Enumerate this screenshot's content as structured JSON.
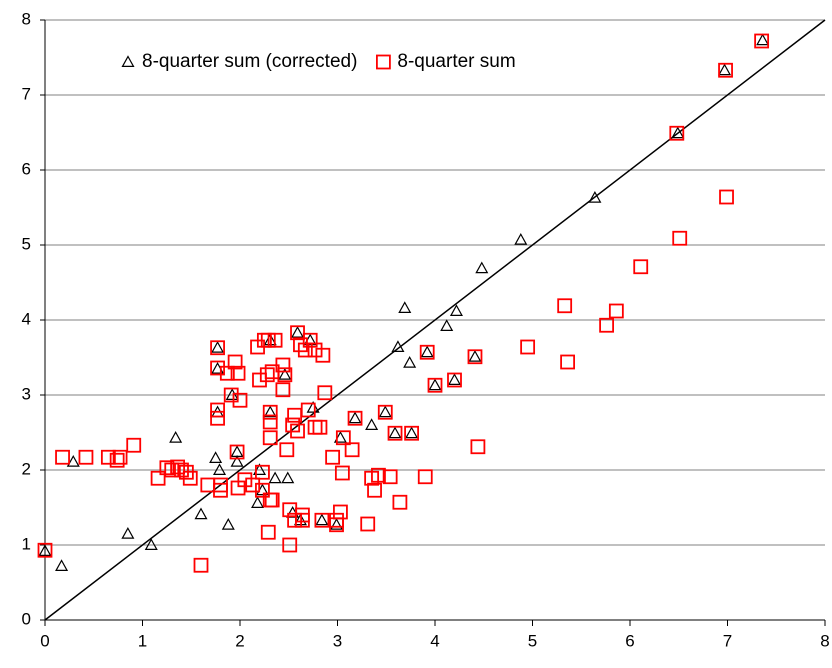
{
  "chart_data": {
    "type": "scatter",
    "xlim": [
      0,
      8
    ],
    "ylim": [
      0,
      8
    ],
    "xticks": [
      0,
      1,
      2,
      3,
      4,
      5,
      6,
      7,
      8
    ],
    "yticks": [
      0,
      1,
      2,
      3,
      4,
      5,
      6,
      7,
      8
    ],
    "grid": true,
    "legend": "top-left",
    "series": [
      {
        "name": "8-quarter sum (corrected)",
        "color": "#000000",
        "marker": "triangle",
        "x": [
          0,
          0.17,
          0.29,
          0.85,
          1.09,
          1.34,
          1.6,
          1.75,
          1.77,
          1.77,
          1.77,
          1.79,
          1.88,
          1.92,
          1.97,
          1.97,
          2.18,
          2.2,
          2.23,
          2.31,
          2.31,
          2.36,
          2.46,
          2.49,
          2.54,
          2.59,
          2.62,
          2.72,
          2.75,
          2.84,
          2.99,
          3.03,
          3.18,
          3.35,
          3.49,
          3.59,
          3.62,
          3.69,
          3.74,
          3.76,
          3.92,
          4.0,
          4.12,
          4.22,
          4.2,
          4.41,
          4.48,
          4.88,
          5.64,
          6.49,
          6.97,
          7.36
        ],
        "values": [
          0.92,
          0.72,
          2.11,
          1.15,
          1.0,
          2.43,
          1.41,
          2.16,
          3.63,
          3.35,
          2.77,
          2.0,
          1.27,
          3.0,
          2.24,
          2.11,
          1.56,
          2.0,
          1.73,
          2.77,
          3.73,
          1.89,
          3.27,
          1.89,
          1.43,
          3.83,
          1.33,
          3.73,
          2.83,
          1.33,
          1.27,
          2.43,
          2.69,
          2.6,
          2.77,
          2.49,
          3.64,
          4.16,
          3.43,
          2.49,
          3.57,
          3.13,
          3.92,
          4.12,
          3.2,
          3.51,
          4.69,
          5.07,
          5.63,
          6.49,
          7.33,
          7.73
        ]
      },
      {
        "name": "8-quarter sum",
        "color": "#ff0000",
        "marker": "square",
        "x": [
          0,
          0.18,
          0.42,
          0.65,
          0.74,
          0.77,
          0.91,
          1.16,
          1.25,
          1.3,
          1.36,
          1.4,
          1.45,
          1.49,
          1.6,
          1.67,
          1.77,
          1.77,
          1.77,
          1.77,
          1.8,
          1.8,
          1.87,
          1.91,
          1.95,
          1.97,
          1.98,
          2.0,
          1.98,
          2.05,
          2.13,
          2.18,
          2.2,
          2.23,
          2.23,
          2.25,
          2.28,
          2.29,
          2.29,
          2.31,
          2.31,
          2.31,
          2.31,
          2.33,
          2.36,
          2.33,
          2.44,
          2.44,
          2.46,
          2.48,
          2.51,
          2.51,
          2.54,
          2.56,
          2.56,
          2.59,
          2.59,
          2.62,
          2.64,
          2.64,
          2.67,
          2.7,
          2.72,
          2.77,
          2.77,
          2.82,
          2.84,
          2.85,
          2.87,
          2.95,
          2.99,
          2.99,
          3.03,
          3.05,
          3.06,
          3.15,
          3.18,
          3.31,
          3.35,
          3.38,
          3.42,
          3.49,
          3.54,
          3.59,
          3.64,
          3.76,
          3.9,
          3.92,
          4.0,
          4.2,
          4.41,
          4.44,
          4.95,
          5.33,
          5.36,
          5.76,
          5.86,
          6.11,
          6.51,
          6.48,
          6.98,
          6.99,
          7.35
        ],
        "values": [
          0.93,
          2.17,
          2.17,
          2.17,
          2.13,
          2.17,
          2.33,
          1.89,
          2.03,
          2.0,
          2.04,
          2.0,
          1.97,
          1.89,
          0.73,
          1.8,
          3.63,
          3.36,
          2.8,
          2.69,
          1.8,
          1.73,
          3.29,
          3.0,
          3.44,
          2.24,
          1.76,
          2.93,
          3.29,
          1.87,
          1.8,
          3.64,
          3.2,
          1.73,
          1.97,
          3.73,
          3.27,
          1.17,
          3.73,
          2.77,
          2.64,
          2.43,
          1.6,
          3.31,
          3.73,
          1.6,
          3.4,
          3.07,
          3.27,
          2.27,
          1.0,
          1.47,
          2.6,
          1.33,
          2.73,
          3.83,
          2.52,
          3.67,
          1.33,
          1.4,
          3.6,
          2.8,
          3.73,
          2.57,
          3.6,
          2.57,
          1.33,
          3.53,
          3.03,
          2.17,
          1.27,
          1.33,
          1.44,
          1.96,
          2.43,
          2.27,
          2.69,
          1.28,
          1.89,
          1.73,
          1.93,
          2.77,
          1.91,
          2.49,
          1.57,
          2.49,
          1.91,
          3.57,
          3.13,
          3.2,
          3.51,
          2.31,
          3.64,
          4.19,
          3.44,
          3.93,
          4.12,
          4.71,
          5.09,
          6.49,
          7.33,
          5.64,
          7.72
        ]
      }
    ]
  }
}
